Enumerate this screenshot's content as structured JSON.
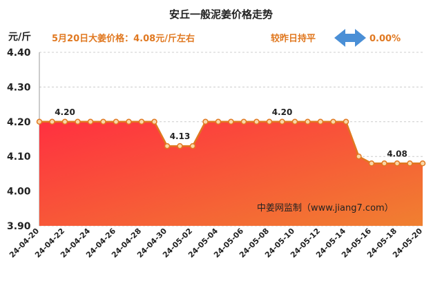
{
  "chart_data": {
    "type": "area",
    "title": "安丘一般泥姜价格走势",
    "ylabel": "元/斤",
    "ylim": [
      3.9,
      4.4
    ],
    "yticks": [
      "4.40",
      "4.30",
      "4.20",
      "4.10",
      "4.00",
      "3.90"
    ],
    "grid": true,
    "x": [
      "24-04-20",
      "24-04-21",
      "24-04-22",
      "24-04-23",
      "24-04-24",
      "24-04-25",
      "24-04-26",
      "24-04-27",
      "24-04-28",
      "24-04-29",
      "24-04-30",
      "24-05-01",
      "24-05-02",
      "24-05-03",
      "24-05-04",
      "24-05-05",
      "24-05-06",
      "24-05-07",
      "24-05-08",
      "24-05-09",
      "24-05-10",
      "24-05-11",
      "24-05-12",
      "24-05-13",
      "24-05-14",
      "24-05-15",
      "24-05-16",
      "24-05-17",
      "24-05-18",
      "24-05-19",
      "24-05-20"
    ],
    "xticks": [
      "24-04-20",
      "24-04-22",
      "24-04-24",
      "24-04-26",
      "24-04-28",
      "24-04-30",
      "24-05-02",
      "24-05-04",
      "24-05-06",
      "24-05-08",
      "24-05-10",
      "24-05-12",
      "24-05-14",
      "24-05-16",
      "24-05-18",
      "24-05-20"
    ],
    "values": [
      4.2,
      4.2,
      4.2,
      4.2,
      4.2,
      4.2,
      4.2,
      4.2,
      4.2,
      4.2,
      4.13,
      4.13,
      4.13,
      4.2,
      4.2,
      4.2,
      4.2,
      4.2,
      4.2,
      4.2,
      4.2,
      4.2,
      4.2,
      4.2,
      4.2,
      4.1,
      4.08,
      4.08,
      4.08,
      4.08,
      4.08
    ],
    "annotations": [
      {
        "index": 2,
        "label": "4.20"
      },
      {
        "index": 11,
        "label": "4.13"
      },
      {
        "index": 19,
        "label": "4.20"
      },
      {
        "index": 28,
        "label": "4.08"
      }
    ],
    "colors": {
      "line": "#e07820",
      "marker_fill": "#fad7a8",
      "area_top": "#ff3040",
      "area_bottom": "#f08030"
    }
  },
  "info": {
    "price_text": "5月20日大姜价格：4.08元/斤左右",
    "change_text": "较昨日持平",
    "change_value": "0.00%",
    "arrow_color": "#4a8fd6"
  },
  "watermark": "中姜网监制（www.jiang7.com）"
}
